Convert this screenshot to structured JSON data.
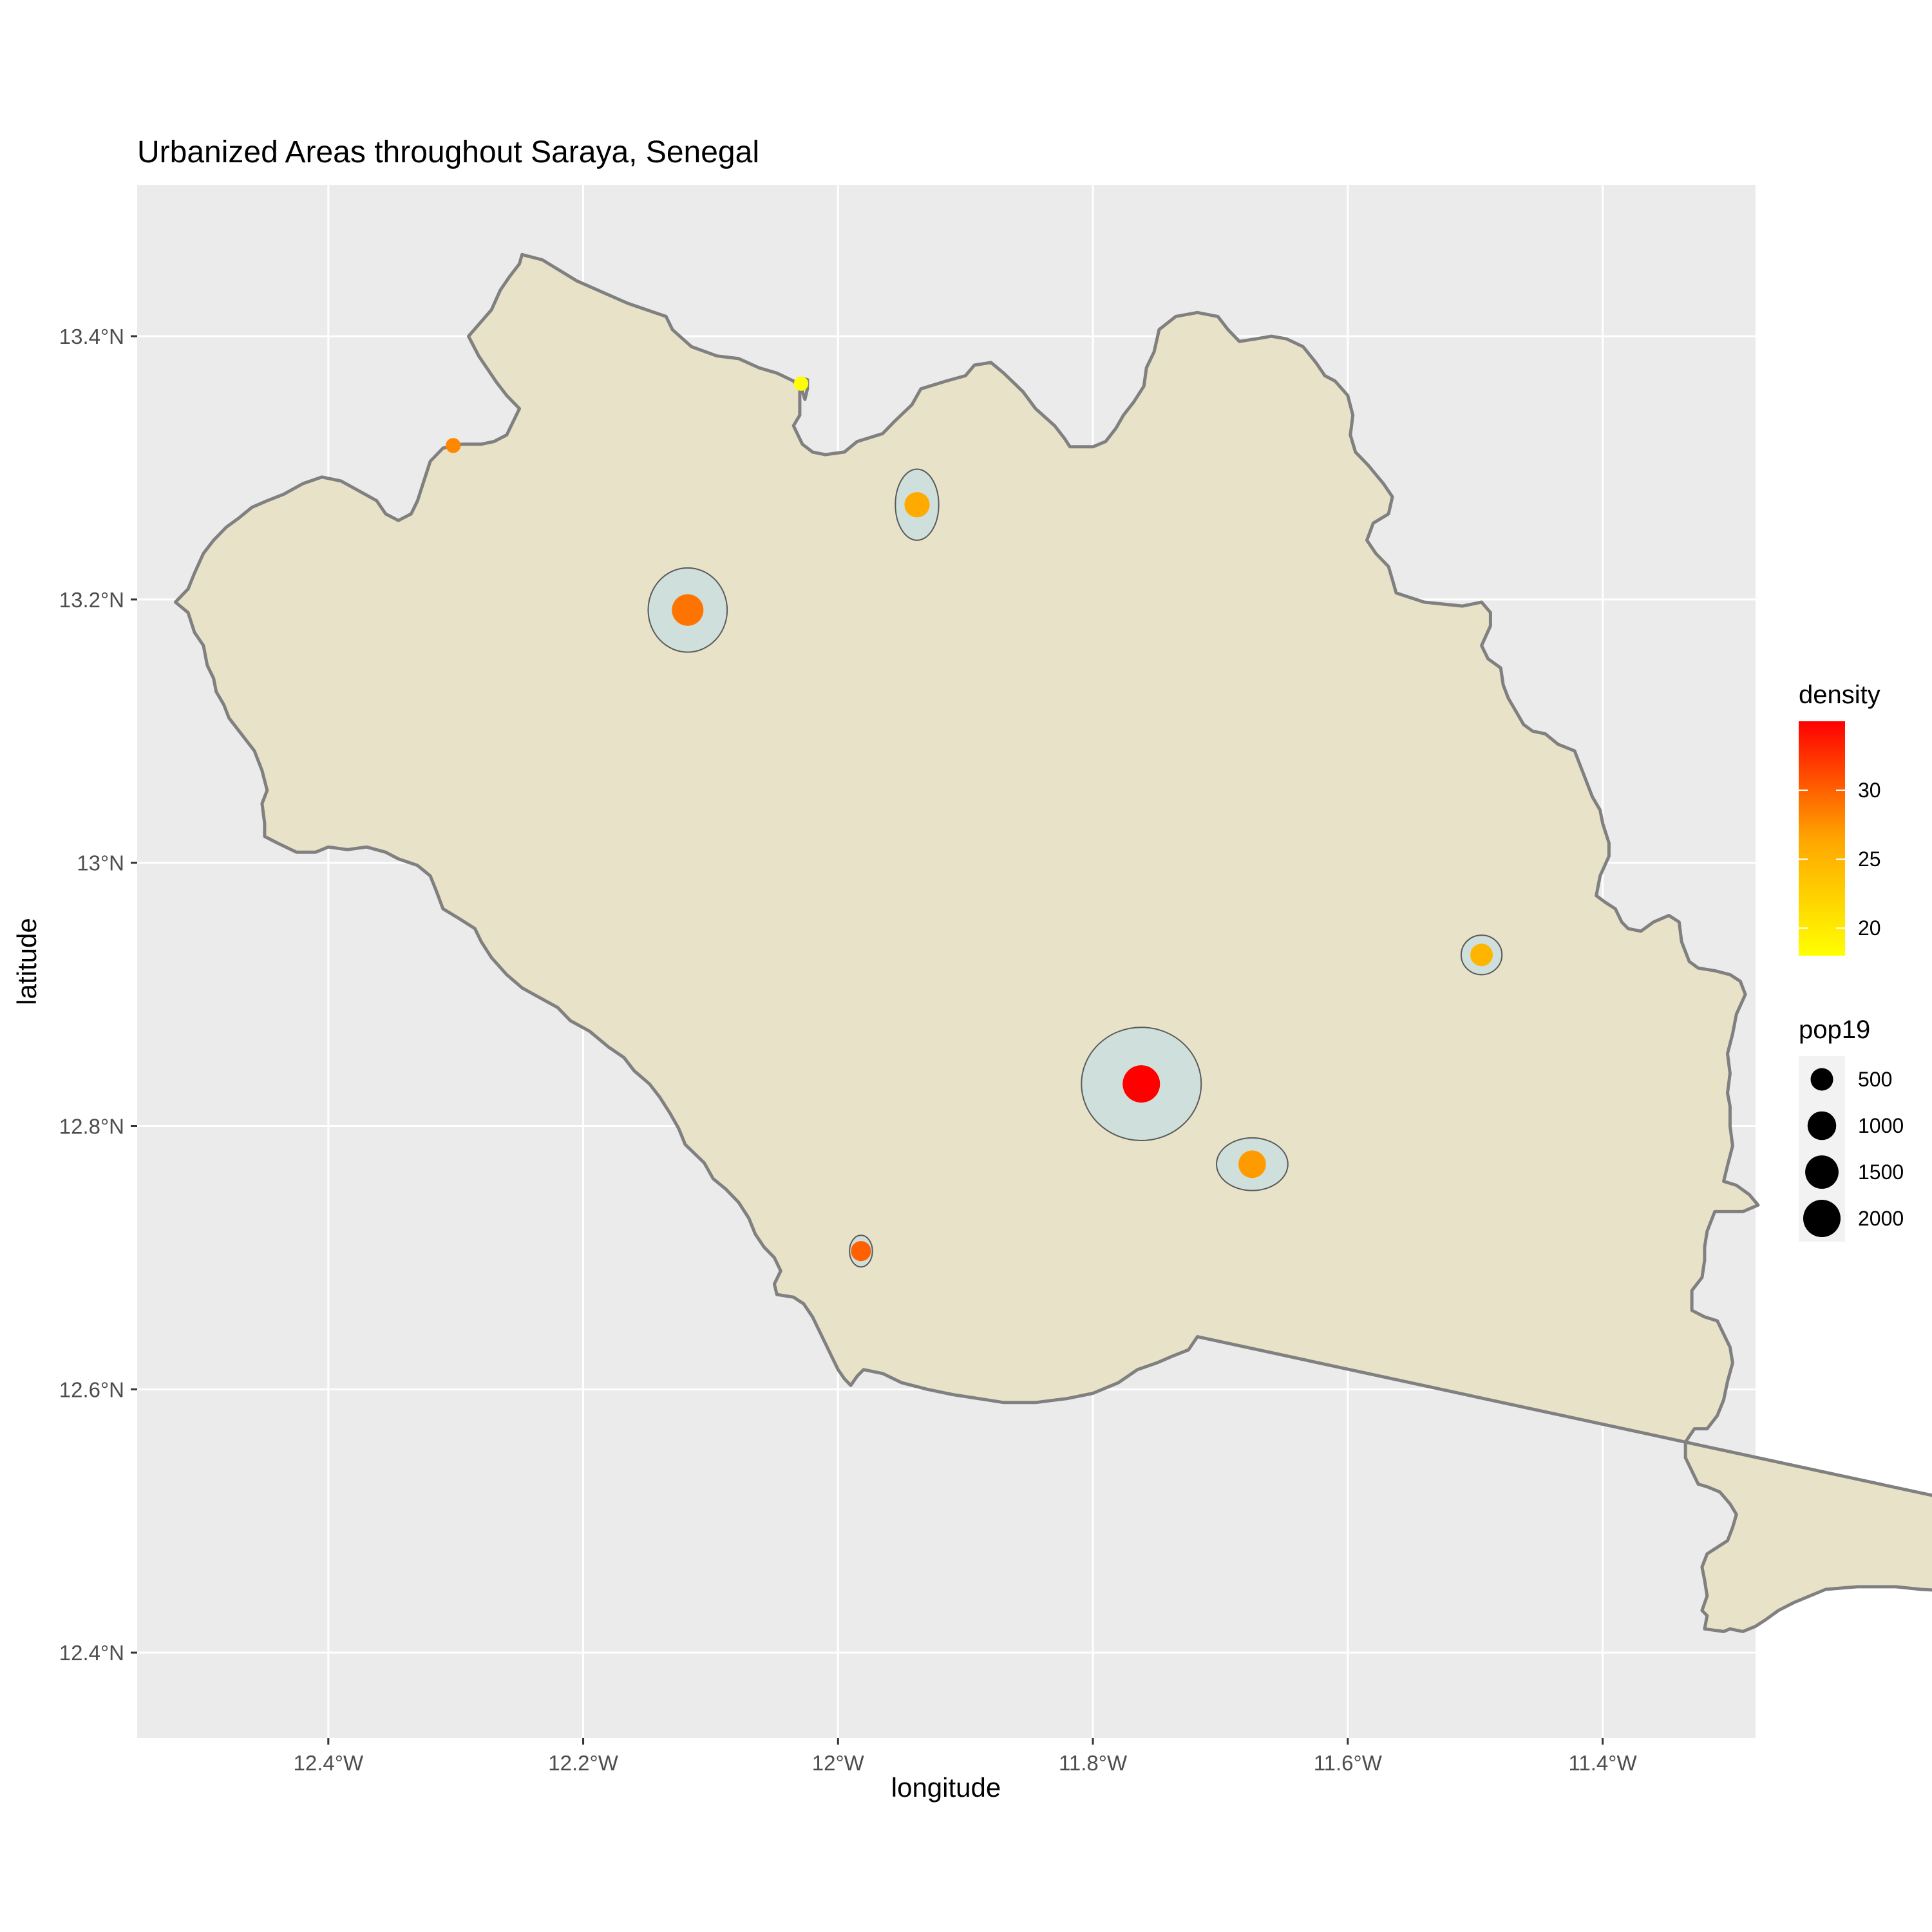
{
  "chart_data": {
    "type": "map",
    "title": "Urbanized Areas throughout Saraya, Senegal",
    "xlabel": "longitude",
    "ylabel": "latitude",
    "xlim": [
      -12.55,
      -11.28
    ],
    "ylim": [
      12.335,
      13.515
    ],
    "x_ticks": [
      {
        "value": -12.4,
        "label": "12.4°W"
      },
      {
        "value": -12.2,
        "label": "12.2°W"
      },
      {
        "value": -12.0,
        "label": "12°W"
      },
      {
        "value": -11.8,
        "label": "11.8°W"
      },
      {
        "value": -11.6,
        "label": "11.6°W"
      },
      {
        "value": -11.4,
        "label": "11.4°W"
      }
    ],
    "y_ticks": [
      {
        "value": 12.4,
        "label": "12.4°N"
      },
      {
        "value": 12.6,
        "label": "12.6°N"
      },
      {
        "value": 12.8,
        "label": "12.8°N"
      },
      {
        "value": 13.0,
        "label": "13°N"
      },
      {
        "value": 13.2,
        "label": "13.2°N"
      },
      {
        "value": 13.4,
        "label": "13.4°N"
      }
    ],
    "grid": true,
    "colors": {
      "panel": "#ebebeb",
      "grid": "#ffffff",
      "region_fill": "#e8e2c8",
      "region_stroke": "#808080",
      "urban_fill": "#cfe0dc",
      "urban_stroke": "#5a5a5a"
    },
    "region_outline": [
      [
        -12.248,
        13.462
      ],
      [
        -12.232,
        13.458
      ],
      [
        -12.205,
        13.442
      ],
      [
        -12.165,
        13.425
      ],
      [
        -12.135,
        13.415
      ],
      [
        -12.13,
        13.405
      ],
      [
        -12.115,
        13.392
      ],
      [
        -12.095,
        13.385
      ],
      [
        -12.078,
        13.383
      ],
      [
        -12.062,
        13.376
      ],
      [
        -12.048,
        13.372
      ],
      [
        -12.035,
        13.366
      ],
      [
        -12.028,
        13.358
      ],
      [
        -12.026,
        13.352
      ],
      [
        -12.024,
        13.36
      ],
      [
        -12.024,
        13.367
      ],
      [
        -12.028,
        13.368
      ],
      [
        -12.03,
        13.358
      ],
      [
        -12.03,
        13.34
      ],
      [
        -12.035,
        13.332
      ],
      [
        -12.028,
        13.318
      ],
      [
        -12.02,
        13.312
      ],
      [
        -12.01,
        13.31
      ],
      [
        -11.995,
        13.312
      ],
      [
        -11.985,
        13.32
      ],
      [
        -11.965,
        13.326
      ],
      [
        -11.955,
        13.336
      ],
      [
        -11.942,
        13.348
      ],
      [
        -11.935,
        13.36
      ],
      [
        -11.915,
        13.366
      ],
      [
        -11.9,
        13.37
      ],
      [
        -11.893,
        13.378
      ],
      [
        -11.88,
        13.38
      ],
      [
        -11.87,
        13.372
      ],
      [
        -11.855,
        13.358
      ],
      [
        -11.845,
        13.345
      ],
      [
        -11.83,
        13.332
      ],
      [
        -11.822,
        13.322
      ],
      [
        -11.818,
        13.316
      ],
      [
        -11.8,
        13.316
      ],
      [
        -11.79,
        13.32
      ],
      [
        -11.782,
        13.33
      ],
      [
        -11.776,
        13.34
      ],
      [
        -11.768,
        13.35
      ],
      [
        -11.76,
        13.362
      ],
      [
        -11.758,
        13.376
      ],
      [
        -11.752,
        13.388
      ],
      [
        -11.748,
        13.405
      ],
      [
        -11.735,
        13.415
      ],
      [
        -11.718,
        13.418
      ],
      [
        -11.702,
        13.415
      ],
      [
        -11.694,
        13.405
      ],
      [
        -11.685,
        13.396
      ],
      [
        -11.672,
        13.398
      ],
      [
        -11.66,
        13.4
      ],
      [
        -11.648,
        13.398
      ],
      [
        -11.635,
        13.392
      ],
      [
        -11.625,
        13.38
      ],
      [
        -11.618,
        13.37
      ],
      [
        -11.61,
        13.366
      ],
      [
        -11.6,
        13.355
      ],
      [
        -11.596,
        13.34
      ],
      [
        -11.598,
        13.325
      ],
      [
        -11.594,
        13.312
      ],
      [
        -11.584,
        13.302
      ],
      [
        -11.578,
        13.295
      ],
      [
        -11.572,
        13.288
      ],
      [
        -11.565,
        13.278
      ],
      [
        -11.568,
        13.265
      ],
      [
        -11.58,
        13.258
      ],
      [
        -11.585,
        13.245
      ],
      [
        -11.578,
        13.235
      ],
      [
        -11.568,
        13.225
      ],
      [
        -11.565,
        13.215
      ],
      [
        -11.562,
        13.205
      ],
      [
        -11.54,
        13.198
      ],
      [
        -11.51,
        13.195
      ],
      [
        -11.495,
        13.198
      ],
      [
        -11.488,
        13.19
      ],
      [
        -11.488,
        13.18
      ],
      [
        -11.495,
        13.165
      ],
      [
        -11.49,
        13.155
      ],
      [
        -11.48,
        13.148
      ],
      [
        -11.478,
        13.135
      ],
      [
        -11.474,
        13.125
      ],
      [
        -11.468,
        13.115
      ],
      [
        -11.462,
        13.105
      ],
      [
        -11.455,
        13.1
      ],
      [
        -11.445,
        13.098
      ],
      [
        -11.435,
        13.09
      ],
      [
        -11.422,
        13.085
      ],
      [
        -11.418,
        13.075
      ],
      [
        -11.412,
        13.06
      ],
      [
        -11.408,
        13.05
      ],
      [
        -11.402,
        13.04
      ],
      [
        -11.4,
        13.03
      ],
      [
        -11.395,
        13.015
      ],
      [
        -11.395,
        13.005
      ],
      [
        -11.402,
        12.99
      ],
      [
        -11.405,
        12.975
      ],
      [
        -11.398,
        12.97
      ],
      [
        -11.39,
        12.965
      ],
      [
        -11.385,
        12.955
      ],
      [
        -11.38,
        12.95
      ],
      [
        -11.37,
        12.948
      ],
      [
        -11.36,
        12.955
      ],
      [
        -11.348,
        12.96
      ],
      [
        -11.34,
        12.955
      ],
      [
        -11.338,
        12.94
      ],
      [
        -11.332,
        12.925
      ],
      [
        -11.325,
        12.92
      ],
      [
        -11.312,
        12.918
      ],
      [
        -11.3,
        12.915
      ],
      [
        -11.292,
        12.91
      ],
      [
        -11.288,
        12.9
      ],
      [
        -11.295,
        12.885
      ],
      [
        -11.298,
        12.87
      ],
      [
        -11.302,
        12.855
      ],
      [
        -11.3,
        12.84
      ],
      [
        -11.302,
        12.825
      ],
      [
        -11.3,
        12.815
      ],
      [
        -11.3,
        12.8
      ],
      [
        -11.298,
        12.785
      ],
      [
        -11.302,
        12.77
      ],
      [
        -11.305,
        12.758
      ],
      [
        -11.295,
        12.755
      ],
      [
        -11.285,
        12.748
      ],
      [
        -11.278,
        12.74
      ],
      [
        -11.29,
        12.735
      ],
      [
        -11.3,
        12.735
      ],
      [
        -11.312,
        12.735
      ],
      [
        -11.318,
        12.72
      ],
      [
        -11.32,
        12.708
      ],
      [
        -11.32,
        12.698
      ],
      [
        -11.322,
        12.685
      ],
      [
        -11.33,
        12.675
      ],
      [
        -11.33,
        12.66
      ],
      [
        -11.32,
        12.655
      ],
      [
        -11.31,
        12.652
      ],
      [
        -11.305,
        12.642
      ],
      [
        -11.3,
        12.632
      ],
      [
        -11.298,
        12.62
      ],
      [
        -11.302,
        12.606
      ],
      [
        -11.305,
        12.592
      ],
      [
        -11.31,
        12.58
      ],
      [
        -11.318,
        12.57
      ],
      [
        -11.328,
        12.57
      ],
      [
        -11.335,
        12.56
      ],
      [
        -11.335,
        12.548
      ],
      [
        -11.33,
        12.538
      ],
      [
        -11.325,
        12.528
      ],
      [
        -11.318,
        12.526
      ],
      [
        -11.308,
        12.522
      ],
      [
        -11.3,
        12.513
      ],
      [
        -11.295,
        12.505
      ],
      [
        -11.298,
        12.495
      ],
      [
        -11.302,
        12.485
      ],
      [
        -11.31,
        12.48
      ],
      [
        -11.318,
        12.475
      ],
      [
        -11.322,
        12.465
      ],
      [
        -11.32,
        12.455
      ],
      [
        -11.318,
        12.443
      ],
      [
        -11.322,
        12.432
      ],
      [
        -11.318,
        12.428
      ],
      [
        -11.32,
        12.418
      ],
      [
        -11.305,
        12.416
      ],
      [
        -11.3,
        12.418
      ],
      [
        -11.29,
        12.416
      ],
      [
        -11.28,
        12.42
      ],
      [
        -11.272,
        12.425
      ],
      [
        -11.262,
        12.432
      ],
      [
        -11.25,
        12.438
      ],
      [
        -11.24,
        12.442
      ],
      [
        -11.225,
        12.448
      ],
      [
        -11.2,
        12.45
      ],
      [
        -11.185,
        12.45
      ],
      [
        -11.17,
        12.45
      ],
      [
        -11.15,
        12.448
      ],
      [
        -11.13,
        12.447
      ],
      [
        -11.11,
        12.443
      ],
      [
        -11.09,
        12.437
      ],
      [
        -11.075,
        12.435
      ],
      [
        -11.06,
        12.432
      ],
      [
        -11.048,
        12.433
      ],
      [
        -11.035,
        12.43
      ],
      [
        -11.02,
        12.425
      ],
      [
        -11.005,
        12.42
      ],
      [
        -10.99,
        12.418
      ],
      [
        -10.975,
        12.415
      ],
      [
        -10.963,
        12.41
      ],
      [
        -10.95,
        12.405
      ],
      [
        -10.94,
        12.402
      ],
      [
        -10.93,
        12.398
      ],
      [
        -10.92,
        12.395
      ],
      [
        -10.908,
        12.39
      ],
      [
        -10.895,
        12.388
      ],
      [
        -10.88,
        12.39
      ],
      [
        -10.87,
        12.389
      ],
      [
        -10.855,
        12.392
      ],
      [
        -10.84,
        12.395
      ],
      [
        -10.828,
        12.39
      ],
      [
        -10.815,
        12.385
      ],
      [
        -10.8,
        12.388
      ],
      [
        -10.788,
        12.398
      ],
      [
        -10.775,
        12.405
      ],
      [
        -10.762,
        12.41
      ],
      [
        -10.752,
        12.418
      ],
      [
        -10.738,
        12.425
      ],
      [
        -10.728,
        12.433
      ],
      [
        -11.718,
        12.64
      ],
      [
        -11.725,
        12.63
      ],
      [
        -11.738,
        12.625
      ],
      [
        -11.75,
        12.62
      ],
      [
        -11.765,
        12.615
      ],
      [
        -11.78,
        12.605
      ],
      [
        -11.8,
        12.597
      ],
      [
        -11.82,
        12.593
      ],
      [
        -11.845,
        12.59
      ],
      [
        -11.87,
        12.59
      ],
      [
        -11.89,
        12.593
      ],
      [
        -11.91,
        12.596
      ],
      [
        -11.93,
        12.6
      ],
      [
        -11.95,
        12.605
      ],
      [
        -11.965,
        12.612
      ],
      [
        -11.98,
        12.615
      ],
      [
        -11.985,
        12.61
      ],
      [
        -11.99,
        12.603
      ],
      [
        -11.995,
        12.608
      ],
      [
        -12.0,
        12.615
      ],
      [
        -12.005,
        12.625
      ],
      [
        -12.01,
        12.635
      ],
      [
        -12.015,
        12.645
      ],
      [
        -12.02,
        12.655
      ],
      [
        -12.027,
        12.665
      ],
      [
        -12.035,
        12.67
      ],
      [
        -12.048,
        12.672
      ],
      [
        -12.05,
        12.68
      ],
      [
        -12.045,
        12.69
      ],
      [
        -12.05,
        12.7
      ],
      [
        -12.058,
        12.708
      ],
      [
        -12.065,
        12.718
      ],
      [
        -12.07,
        12.73
      ],
      [
        -12.078,
        12.742
      ],
      [
        -12.088,
        12.752
      ],
      [
        -12.098,
        12.76
      ],
      [
        -12.105,
        12.772
      ],
      [
        -12.12,
        12.786
      ],
      [
        -12.125,
        12.798
      ],
      [
        -12.132,
        12.81
      ],
      [
        -12.14,
        12.822
      ],
      [
        -12.148,
        12.832
      ],
      [
        -12.16,
        12.842
      ],
      [
        -12.168,
        12.852
      ],
      [
        -12.18,
        12.86
      ],
      [
        -12.195,
        12.872
      ],
      [
        -12.21,
        12.88
      ],
      [
        -12.22,
        12.89
      ],
      [
        -12.235,
        12.898
      ],
      [
        -12.248,
        12.905
      ],
      [
        -12.26,
        12.915
      ],
      [
        -12.272,
        12.928
      ],
      [
        -12.28,
        12.94
      ],
      [
        -12.285,
        12.95
      ],
      [
        -12.298,
        12.958
      ],
      [
        -12.31,
        12.965
      ],
      [
        -12.315,
        12.978
      ],
      [
        -12.32,
        12.99
      ],
      [
        -12.33,
        12.998
      ],
      [
        -12.345,
        13.003
      ],
      [
        -12.355,
        13.008
      ],
      [
        -12.37,
        13.012
      ],
      [
        -12.385,
        13.01
      ],
      [
        -12.4,
        13.012
      ],
      [
        -12.41,
        13.008
      ],
      [
        -12.425,
        13.008
      ],
      [
        -12.44,
        13.015
      ],
      [
        -12.45,
        13.02
      ],
      [
        -12.45,
        13.03
      ],
      [
        -12.452,
        13.045
      ],
      [
        -12.448,
        13.055
      ],
      [
        -12.452,
        13.07
      ],
      [
        -12.458,
        13.085
      ],
      [
        -12.47,
        13.1
      ],
      [
        -12.478,
        13.11
      ],
      [
        -12.482,
        13.12
      ],
      [
        -12.488,
        13.13
      ],
      [
        -12.49,
        13.14
      ],
      [
        -12.495,
        13.15
      ],
      [
        -12.498,
        13.165
      ],
      [
        -12.505,
        13.175
      ],
      [
        -12.51,
        13.19
      ],
      [
        -12.52,
        13.198
      ],
      [
        -12.51,
        13.208
      ],
      [
        -12.505,
        13.22
      ],
      [
        -12.498,
        13.235
      ],
      [
        -12.49,
        13.245
      ],
      [
        -12.48,
        13.255
      ],
      [
        -12.47,
        13.262
      ],
      [
        -12.46,
        13.27
      ],
      [
        -12.448,
        13.275
      ],
      [
        -12.435,
        13.28
      ],
      [
        -12.42,
        13.288
      ],
      [
        -12.405,
        13.293
      ],
      [
        -12.39,
        13.29
      ],
      [
        -12.375,
        13.282
      ],
      [
        -12.362,
        13.275
      ],
      [
        -12.355,
        13.265
      ],
      [
        -12.345,
        13.26
      ],
      [
        -12.335,
        13.265
      ],
      [
        -12.33,
        13.275
      ],
      [
        -12.325,
        13.29
      ],
      [
        -12.32,
        13.305
      ],
      [
        -12.31,
        13.315
      ],
      [
        -12.295,
        13.318
      ],
      [
        -12.28,
        13.318
      ],
      [
        -12.27,
        13.32
      ],
      [
        -12.26,
        13.325
      ],
      [
        -12.255,
        13.335
      ],
      [
        -12.25,
        13.345
      ],
      [
        -12.26,
        13.355
      ],
      [
        -12.268,
        13.365
      ],
      [
        -12.275,
        13.375
      ],
      [
        -12.282,
        13.385
      ],
      [
        -12.29,
        13.4
      ],
      [
        -12.272,
        13.42
      ],
      [
        -12.265,
        13.435
      ],
      [
        -12.258,
        13.445
      ],
      [
        -12.25,
        13.455
      ],
      [
        -12.248,
        13.462
      ]
    ],
    "urban_areas": [
      {
        "lon": -11.762,
        "lat": 12.832,
        "rx": 0.047,
        "ry": 0.043,
        "density": 35,
        "pop19": 2000
      },
      {
        "lon": -12.118,
        "lat": 13.192,
        "rx": 0.031,
        "ry": 0.032,
        "density": 29,
        "pop19": 1300
      },
      {
        "lon": -11.938,
        "lat": 13.272,
        "rx": 0.017,
        "ry": 0.027,
        "density": 26,
        "pop19": 700
      },
      {
        "lon": -11.675,
        "lat": 12.771,
        "rx": 0.028,
        "ry": 0.02,
        "density": 27,
        "pop19": 900
      },
      {
        "lon": -11.495,
        "lat": 12.93,
        "rx": 0.016,
        "ry": 0.015,
        "density": 25,
        "pop19": 500
      },
      {
        "lon": -11.982,
        "lat": 12.705,
        "rx": 0.009,
        "ry": 0.012,
        "density": 30,
        "pop19": 350
      },
      {
        "lon": -12.302,
        "lat": 13.317,
        "rx": 0.004,
        "ry": 0.003,
        "density": 28,
        "pop19": 120
      },
      {
        "lon": -12.029,
        "lat": 13.364,
        "rx": 0.003,
        "ry": 0.004,
        "density": 18,
        "pop19": 100
      }
    ],
    "legend": {
      "color_title": "density",
      "color_breaks": [
        {
          "value": 30,
          "label": "30"
        },
        {
          "value": 25,
          "label": "25"
        },
        {
          "value": 20,
          "label": "20"
        }
      ],
      "color_range": [
        18,
        35
      ],
      "size_title": "pop19",
      "size_breaks": [
        {
          "value": 500,
          "label": "500"
        },
        {
          "value": 1000,
          "label": "1000"
        },
        {
          "value": 1500,
          "label": "1500"
        },
        {
          "value": 2000,
          "label": "2000"
        }
      ],
      "placement": "right"
    }
  }
}
